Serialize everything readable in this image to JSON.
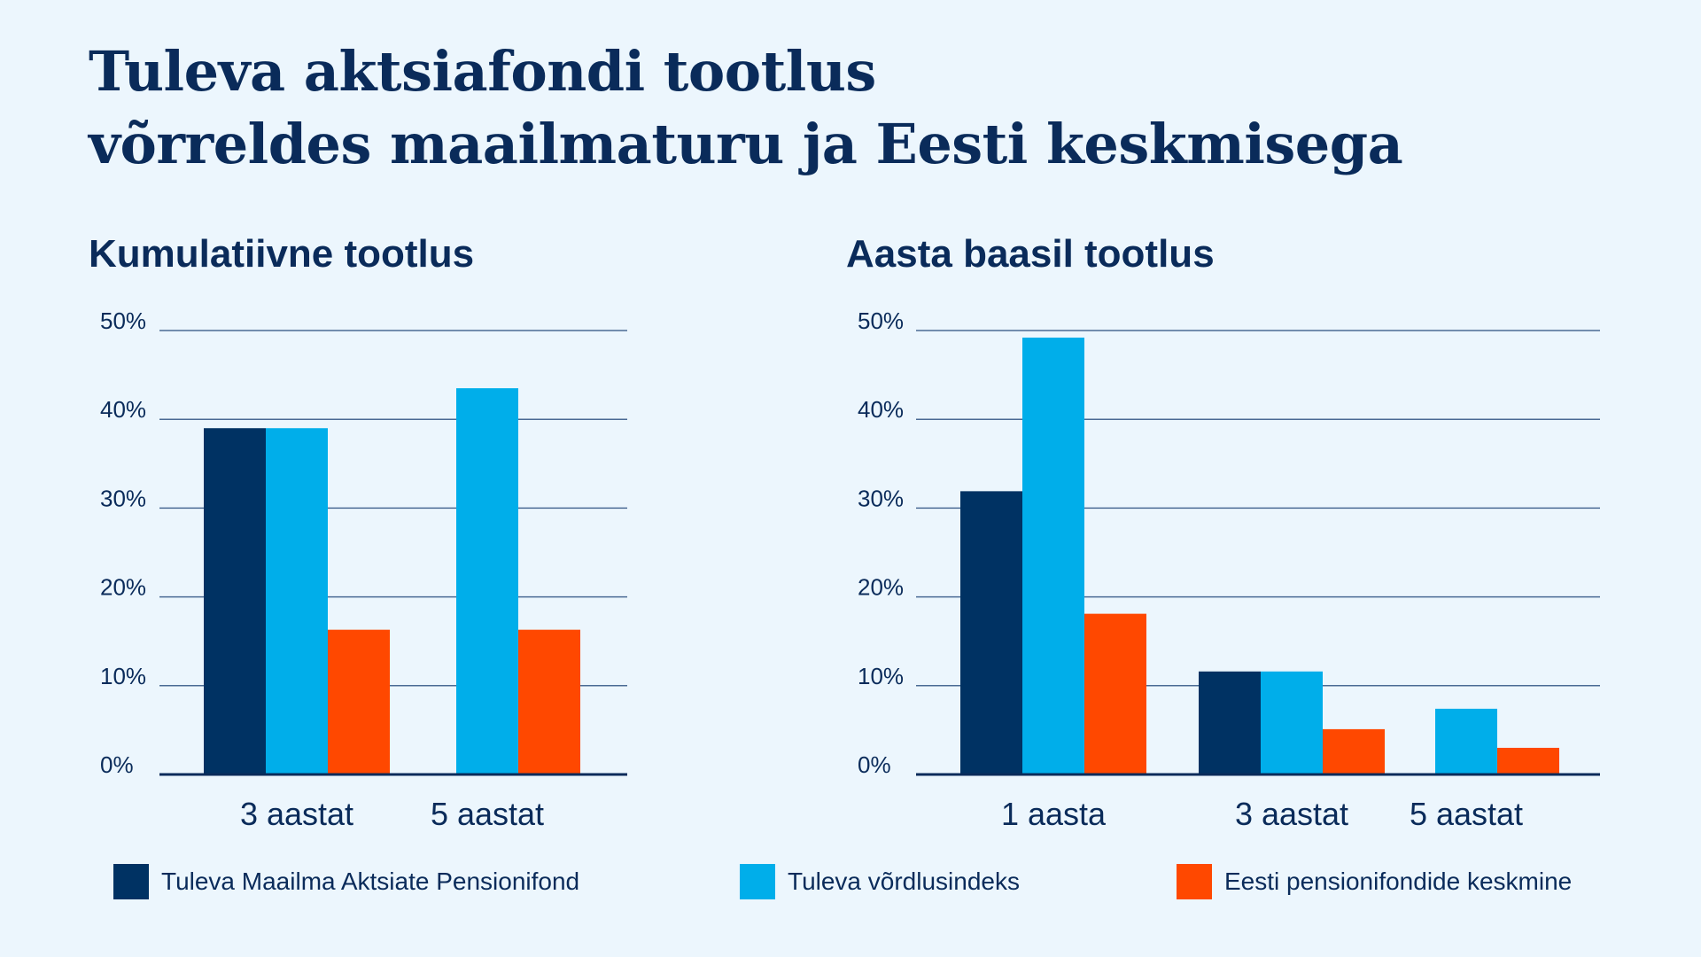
{
  "title_line1": "Tuleva aktsiafondi tootlus",
  "title_line2": "võrreldes maailmaturu ja Eesti keskmisega",
  "colors": {
    "series1": "#003263",
    "series2": "#00aeea",
    "series3": "#ff4800",
    "grid": "#4a6a94",
    "text": "#0a2b5a"
  },
  "legend": [
    {
      "label": "Tuleva Maailma Aktsiate Pensionifond",
      "color": "#003263"
    },
    {
      "label": "Tuleva võrdlusindeks",
      "color": "#00aeea"
    },
    {
      "label": "Eesti pensionifondide keskmine",
      "color": "#ff4800"
    }
  ],
  "chart_data": [
    {
      "type": "bar",
      "title": "Kumulatiivne tootlus",
      "categories": [
        "3 aastat",
        "5 aastat"
      ],
      "series": [
        {
          "name": "Tuleva Maailma Aktsiate Pensionifond",
          "values": [
            39,
            null
          ]
        },
        {
          "name": "Tuleva võrdlusindeks",
          "values": [
            39,
            43.5
          ]
        },
        {
          "name": "Eesti pensionifondide keskmine",
          "values": [
            16.3,
            16.3
          ]
        }
      ],
      "ylim": [
        0,
        50
      ],
      "yticks": [
        "0%",
        "10%",
        "20%",
        "30%",
        "40%",
        "50%"
      ],
      "grid": true
    },
    {
      "type": "bar",
      "title": "Aasta baasil tootlus",
      "categories": [
        "1 aasta",
        "3 aastat",
        "5 aastat"
      ],
      "series": [
        {
          "name": "Tuleva Maailma Aktsiate Pensionifond",
          "values": [
            31.9,
            11.6,
            null
          ]
        },
        {
          "name": "Tuleva võrdlusindeks",
          "values": [
            49.2,
            11.6,
            7.4
          ]
        },
        {
          "name": "Eesti pensionifondide keskmine",
          "values": [
            18.1,
            5.1,
            3.0
          ]
        }
      ],
      "ylim": [
        0,
        50
      ],
      "yticks": [
        "0%",
        "10%",
        "20%",
        "30%",
        "40%",
        "50%"
      ],
      "grid": true
    }
  ]
}
